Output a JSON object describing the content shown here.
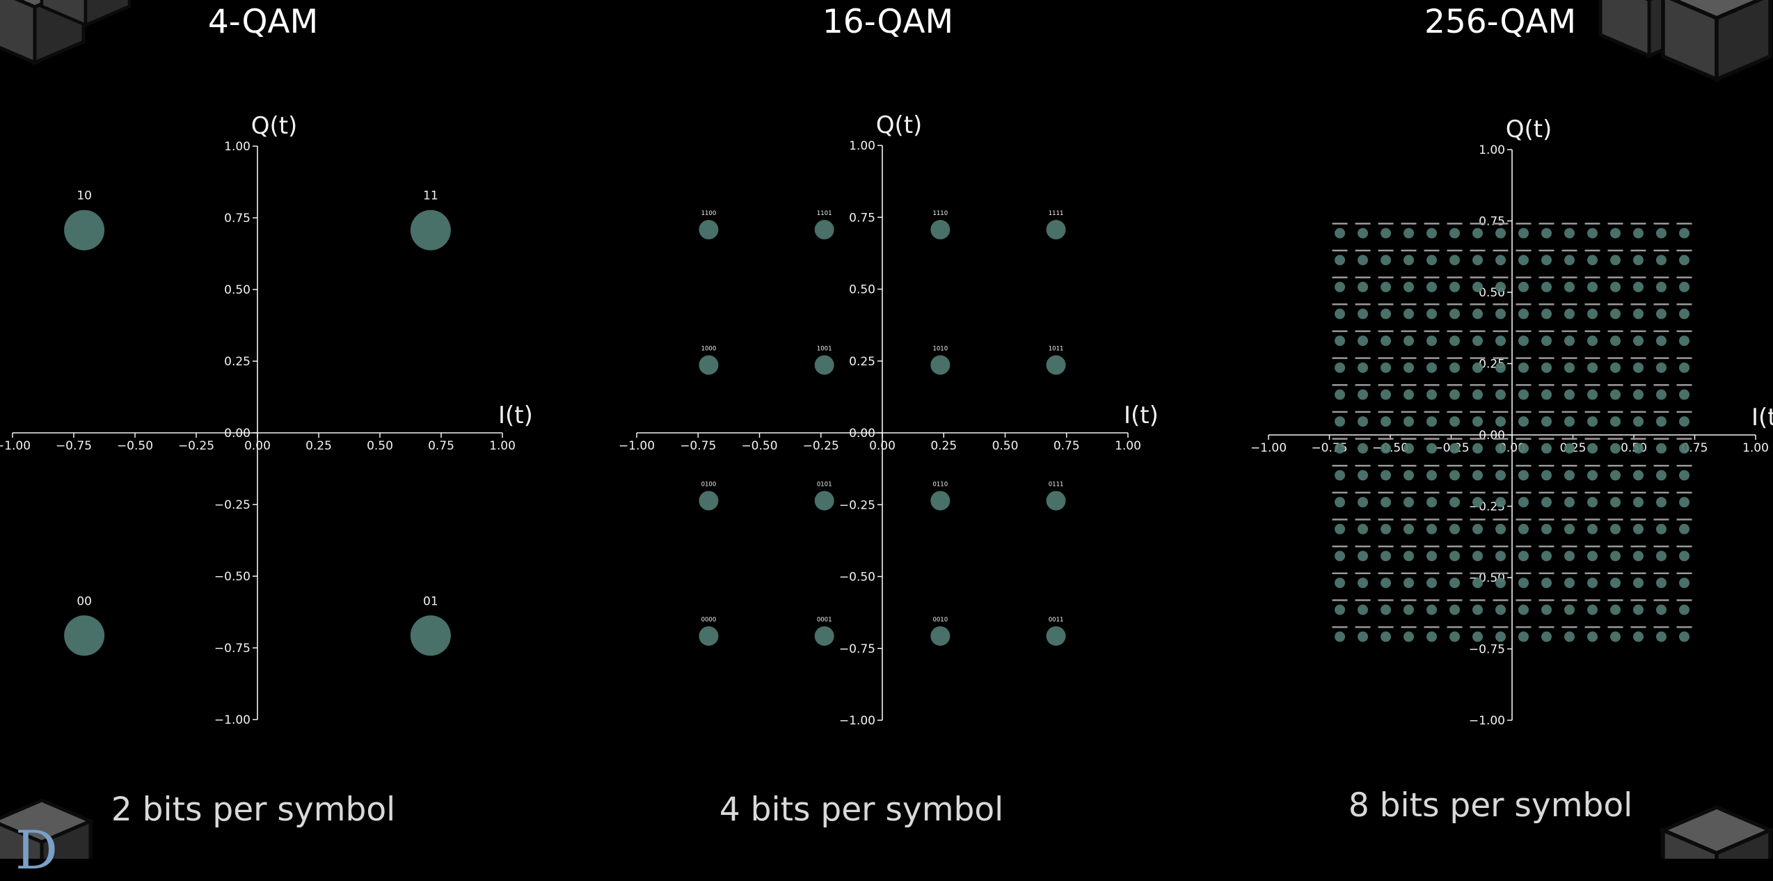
{
  "branding": {
    "logo_text": "D"
  },
  "panels": [
    {
      "title": "4-QAM",
      "caption": "2 bits per symbol"
    },
    {
      "title": "16-QAM",
      "caption": "4 bits per symbol"
    },
    {
      "title": "256-QAM",
      "caption": "8 bits per symbol"
    }
  ],
  "chart_data": [
    {
      "type": "scatter",
      "title": "4-QAM",
      "xlabel": "I(t)",
      "ylabel": "Q(t)",
      "xlim": [
        -1.0,
        1.0
      ],
      "ylim": [
        -1.0,
        1.0
      ],
      "xticks": [
        "−1.00",
        "−0.75",
        "−0.50",
        "−0.25",
        "0.00",
        "0.25",
        "0.50",
        "0.75",
        "1.00"
      ],
      "yticks": [
        "1.00",
        "0.75",
        "0.50",
        "0.25",
        "0.00",
        "−0.25",
        "−0.50",
        "−0.75",
        "−1.00"
      ],
      "grid": false,
      "marker_color": "#4f7a72",
      "points": [
        {
          "x": -0.707,
          "y": 0.707,
          "label": "10"
        },
        {
          "x": 0.707,
          "y": 0.707,
          "label": "11"
        },
        {
          "x": -0.707,
          "y": -0.707,
          "label": "00"
        },
        {
          "x": 0.707,
          "y": -0.707,
          "label": "01"
        }
      ]
    },
    {
      "type": "scatter",
      "title": "16-QAM",
      "xlabel": "I(t)",
      "ylabel": "Q(t)",
      "xlim": [
        -1.0,
        1.0
      ],
      "ylim": [
        -1.0,
        1.0
      ],
      "xticks": [
        "−1.00",
        "−0.75",
        "−0.50",
        "−0.25",
        "0.00",
        "0.25",
        "0.50",
        "0.75",
        "1.00"
      ],
      "yticks": [
        "1.00",
        "0.75",
        "0.50",
        "0.25",
        "0.00",
        "−0.25",
        "−0.50",
        "−0.75",
        "−1.00"
      ],
      "grid": false,
      "marker_color": "#4f7a72",
      "points": [
        {
          "x": -0.707,
          "y": 0.707,
          "label": "1100"
        },
        {
          "x": -0.236,
          "y": 0.707,
          "label": "1101"
        },
        {
          "x": 0.236,
          "y": 0.707,
          "label": "1110"
        },
        {
          "x": 0.707,
          "y": 0.707,
          "label": "1111"
        },
        {
          "x": -0.707,
          "y": 0.236,
          "label": "1000"
        },
        {
          "x": -0.236,
          "y": 0.236,
          "label": "1001"
        },
        {
          "x": 0.236,
          "y": 0.236,
          "label": "1010"
        },
        {
          "x": 0.707,
          "y": 0.236,
          "label": "1011"
        },
        {
          "x": -0.707,
          "y": -0.236,
          "label": "0100"
        },
        {
          "x": -0.236,
          "y": -0.236,
          "label": "0101"
        },
        {
          "x": 0.236,
          "y": -0.236,
          "label": "0110"
        },
        {
          "x": 0.707,
          "y": -0.236,
          "label": "0111"
        },
        {
          "x": -0.707,
          "y": -0.707,
          "label": "0000"
        },
        {
          "x": -0.236,
          "y": -0.707,
          "label": "0001"
        },
        {
          "x": 0.236,
          "y": -0.707,
          "label": "0010"
        },
        {
          "x": 0.707,
          "y": -0.707,
          "label": "0011"
        }
      ]
    },
    {
      "type": "scatter",
      "title": "256-QAM",
      "xlabel": "I(t)",
      "ylabel": "Q(t)",
      "xlim": [
        -1.0,
        1.0
      ],
      "ylim": [
        -1.0,
        1.0
      ],
      "xticks": [
        "−1.00",
        "−0.75",
        "−0.50",
        "−0.25",
        "0.00",
        "0.25",
        "0.50",
        "0.75",
        "1.00"
      ],
      "yticks": [
        "1.00",
        "0.75",
        "0.50",
        "0.25",
        "0.00",
        "−0.25",
        "−0.50",
        "−0.75",
        "−1.00"
      ],
      "grid": false,
      "marker_color": "#4f7a72",
      "grid_points": {
        "levels": [
          -0.7071,
          -0.6128,
          -0.5185,
          -0.4243,
          -0.33,
          -0.2357,
          -0.1414,
          -0.0471,
          0.0471,
          0.1414,
          0.2357,
          0.33,
          0.4243,
          0.5185,
          0.6128,
          0.7071
        ],
        "count_per_axis": 16,
        "labels": "8-bit symbol codes (too small to read)"
      }
    }
  ]
}
